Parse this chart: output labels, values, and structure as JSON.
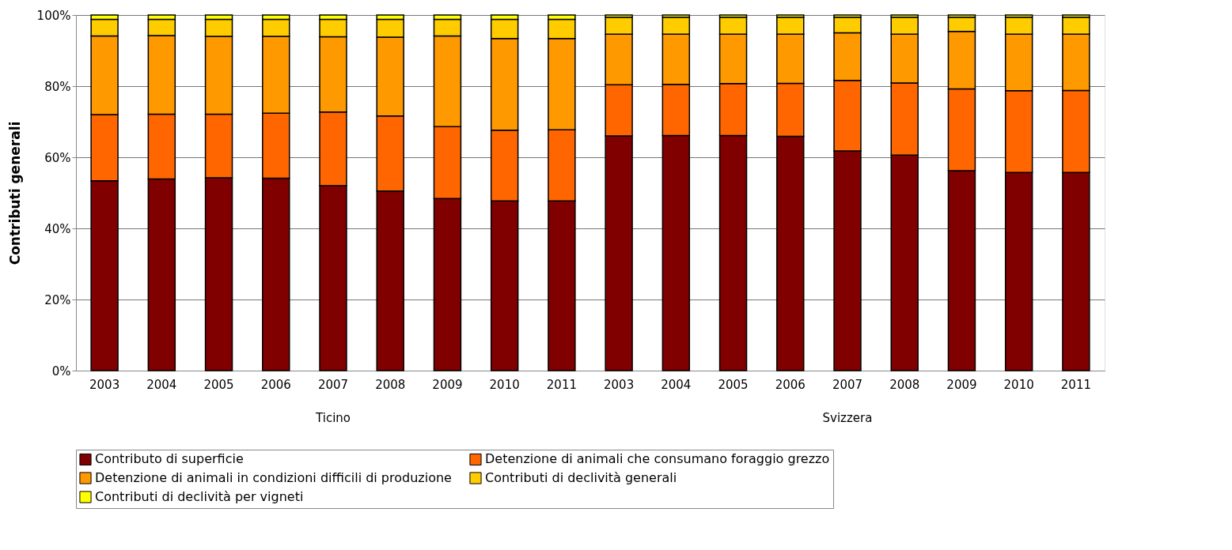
{
  "chart_data": {
    "type": "bar",
    "stacked": true,
    "ylabel": "Contributi generali",
    "categories": [
      "2003",
      "2004",
      "2005",
      "2006",
      "2007",
      "2008",
      "2009",
      "2010",
      "2011",
      "2003",
      "2004",
      "2005",
      "2006",
      "2007",
      "2008",
      "2009",
      "2010",
      "2011"
    ],
    "annotations": [
      "Ticino",
      "Svizzera"
    ],
    "series": [
      {
        "name": "Contributo di superficie",
        "color": "#800000",
        "values": [
          53.4,
          53.9,
          54.2,
          54.1,
          52.0,
          50.5,
          48.4,
          47.7,
          47.7,
          66.0,
          66.1,
          66.1,
          65.9,
          61.8,
          60.6,
          56.2,
          55.7,
          55.7
        ]
      },
      {
        "name": "Detenzione di animali che consumano foraggio grezzo",
        "color": "#ff6600",
        "values": [
          18.6,
          18.2,
          17.9,
          18.3,
          20.7,
          21.1,
          20.2,
          19.9,
          20.0,
          14.4,
          14.4,
          14.6,
          14.9,
          19.8,
          20.3,
          23.0,
          23.0,
          23.1
        ]
      },
      {
        "name": "Detenzione di animali in condizioni difficili di produzione",
        "color": "#ff9900",
        "values": [
          22.1,
          22.1,
          21.9,
          21.6,
          21.2,
          22.2,
          25.5,
          25.8,
          25.7,
          14.2,
          14.1,
          13.9,
          13.8,
          13.4,
          13.7,
          16.2,
          15.9,
          15.8
        ]
      },
      {
        "name": "Contributi di declività generali",
        "color": "#ffcc00",
        "values": [
          4.7,
          4.6,
          4.8,
          4.8,
          4.9,
          5.0,
          4.7,
          5.4,
          5.4,
          4.8,
          4.8,
          4.8,
          4.8,
          4.4,
          4.8,
          4.0,
          4.8,
          4.8
        ]
      },
      {
        "name": "Contributi di declività per vigneti",
        "color": "#ffff00",
        "values": [
          1.2,
          1.2,
          1.2,
          1.2,
          1.2,
          1.2,
          1.2,
          1.2,
          1.2,
          0.6,
          0.6,
          0.6,
          0.6,
          0.6,
          0.6,
          0.6,
          0.6,
          0.6
        ]
      }
    ],
    "ylim": [
      0,
      100
    ],
    "yticks": [
      {
        "value": 0,
        "label": "0%"
      },
      {
        "value": 20,
        "label": "20%"
      },
      {
        "value": 40,
        "label": "40%"
      },
      {
        "value": 60,
        "label": "60%"
      },
      {
        "value": 80,
        "label": "80%"
      },
      {
        "value": 100,
        "label": "100%"
      }
    ],
    "grid": "y",
    "legend": "bottom"
  }
}
